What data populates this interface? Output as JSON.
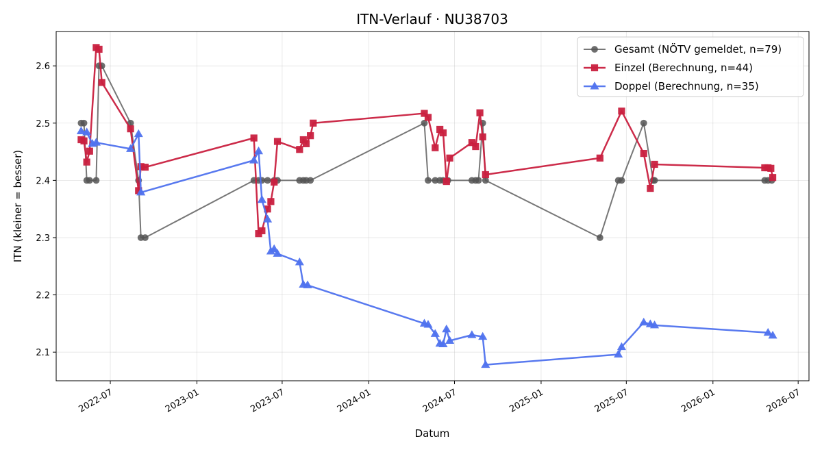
{
  "chart_data": {
    "type": "line",
    "title": "ITN-Verlauf · NU38703",
    "xlabel": "Datum",
    "ylabel": "ITN  (kleiner = besser)",
    "x_scale": "date",
    "xlim": [
      "2022-03-08",
      "2026-07-24"
    ],
    "ylim": [
      2.05,
      2.66
    ],
    "x_ticks": [
      "2022-07-01",
      "2023-01-01",
      "2023-07-01",
      "2024-01-01",
      "2024-07-01",
      "2025-01-01",
      "2025-07-01",
      "2026-01-01",
      "2026-07-01"
    ],
    "x_tick_labels": [
      "2022-07",
      "2023-01",
      "2023-07",
      "2024-01",
      "2024-07",
      "2025-01",
      "2025-07",
      "2026-01",
      "2026-07"
    ],
    "y_ticks": [
      2.1,
      2.2,
      2.3,
      2.4,
      2.5,
      2.6
    ],
    "y_tick_labels": [
      "2.1",
      "2.2",
      "2.3",
      "2.4",
      "2.5",
      "2.6"
    ],
    "grid": true,
    "legend_position": "top-right",
    "series": [
      {
        "name": "Gesamt (NÖTV gemeldet, n=79)",
        "color": "#555555",
        "marker": "circle",
        "points": [
          [
            "2022-04-30",
            2.5
          ],
          [
            "2022-05-06",
            2.5
          ],
          [
            "2022-05-12",
            2.4
          ],
          [
            "2022-05-18",
            2.4
          ],
          [
            "2022-06-01",
            2.4
          ],
          [
            "2022-06-07",
            2.6
          ],
          [
            "2022-06-13",
            2.6
          ],
          [
            "2022-08-13",
            2.5
          ],
          [
            "2022-08-30",
            2.4
          ],
          [
            "2022-09-04",
            2.3
          ],
          [
            "2022-09-13",
            2.3
          ],
          [
            "2023-05-02",
            2.4
          ],
          [
            "2023-05-12",
            2.4
          ],
          [
            "2023-05-19",
            2.4
          ],
          [
            "2023-05-31",
            2.4
          ],
          [
            "2023-06-14",
            2.4
          ],
          [
            "2023-06-21",
            2.4
          ],
          [
            "2023-08-07",
            2.4
          ],
          [
            "2023-08-15",
            2.4
          ],
          [
            "2023-08-21",
            2.4
          ],
          [
            "2023-08-30",
            2.4
          ],
          [
            "2024-04-28",
            2.5
          ],
          [
            "2024-05-06",
            2.4
          ],
          [
            "2024-05-21",
            2.4
          ],
          [
            "2024-05-31",
            2.4
          ],
          [
            "2024-06-07",
            2.4
          ],
          [
            "2024-06-17",
            2.4
          ],
          [
            "2024-08-07",
            2.4
          ],
          [
            "2024-08-15",
            2.4
          ],
          [
            "2024-08-21",
            2.4
          ],
          [
            "2024-08-30",
            2.5
          ],
          [
            "2024-09-05",
            2.4
          ],
          [
            "2025-05-06",
            2.3
          ],
          [
            "2025-06-14",
            2.4
          ],
          [
            "2025-06-21",
            2.4
          ],
          [
            "2025-08-07",
            2.5
          ],
          [
            "2025-08-27",
            2.4
          ],
          [
            "2025-08-30",
            2.4
          ],
          [
            "2026-04-21",
            2.4
          ],
          [
            "2026-04-28",
            2.4
          ],
          [
            "2026-05-06",
            2.4
          ]
        ]
      },
      {
        "name": "Einzel (Berechnung, n=44)",
        "color": "#c9203f",
        "marker": "square",
        "points": [
          [
            "2022-04-30",
            2.471
          ],
          [
            "2022-05-06",
            2.469
          ],
          [
            "2022-05-12",
            2.432
          ],
          [
            "2022-05-18",
            2.451
          ],
          [
            "2022-06-01",
            2.632
          ],
          [
            "2022-06-07",
            2.629
          ],
          [
            "2022-06-13",
            2.571
          ],
          [
            "2022-08-13",
            2.49
          ],
          [
            "2022-08-30",
            2.382
          ],
          [
            "2022-09-04",
            2.424
          ],
          [
            "2022-09-13",
            2.423
          ],
          [
            "2023-05-02",
            2.474
          ],
          [
            "2023-05-12",
            2.307
          ],
          [
            "2023-05-19",
            2.312
          ],
          [
            "2023-05-31",
            2.35
          ],
          [
            "2023-06-07",
            2.363
          ],
          [
            "2023-06-14",
            2.397
          ],
          [
            "2023-06-21",
            2.468
          ],
          [
            "2023-08-07",
            2.454
          ],
          [
            "2023-08-15",
            2.471
          ],
          [
            "2023-08-21",
            2.464
          ],
          [
            "2023-08-30",
            2.478
          ],
          [
            "2023-09-05",
            2.5
          ],
          [
            "2024-04-28",
            2.517
          ],
          [
            "2024-05-06",
            2.51
          ],
          [
            "2024-05-21",
            2.457
          ],
          [
            "2024-05-31",
            2.489
          ],
          [
            "2024-06-07",
            2.483
          ],
          [
            "2024-06-14",
            2.398
          ],
          [
            "2024-06-21",
            2.439
          ],
          [
            "2024-08-07",
            2.466
          ],
          [
            "2024-08-15",
            2.459
          ],
          [
            "2024-08-24",
            2.518
          ],
          [
            "2024-08-30",
            2.476
          ],
          [
            "2024-09-05",
            2.41
          ],
          [
            "2025-05-06",
            2.439
          ],
          [
            "2025-06-21",
            2.521
          ],
          [
            "2025-08-07",
            2.447
          ],
          [
            "2025-08-21",
            2.386
          ],
          [
            "2025-08-30",
            2.428
          ],
          [
            "2026-04-21",
            2.422
          ],
          [
            "2026-04-28",
            2.422
          ],
          [
            "2026-05-04",
            2.421
          ],
          [
            "2026-05-08",
            2.405
          ]
        ]
      },
      {
        "name": "Doppel (Berechnung, n=35)",
        "color": "#4f72ee",
        "marker": "triangle",
        "points": [
          [
            "2022-04-30",
            2.486
          ],
          [
            "2022-05-12",
            2.484
          ],
          [
            "2022-05-24",
            2.464
          ],
          [
            "2022-06-01",
            2.466
          ],
          [
            "2022-08-13",
            2.455
          ],
          [
            "2022-08-30",
            2.481
          ],
          [
            "2022-09-04",
            2.379
          ],
          [
            "2023-05-02",
            2.435
          ],
          [
            "2023-05-12",
            2.451
          ],
          [
            "2023-05-19",
            2.366
          ],
          [
            "2023-05-31",
            2.332
          ],
          [
            "2023-06-07",
            2.276
          ],
          [
            "2023-06-14",
            2.28
          ],
          [
            "2023-06-21",
            2.272
          ],
          [
            "2023-08-07",
            2.257
          ],
          [
            "2023-08-15",
            2.218
          ],
          [
            "2023-08-24",
            2.217
          ],
          [
            "2024-04-28",
            2.15
          ],
          [
            "2024-05-06",
            2.148
          ],
          [
            "2024-05-21",
            2.132
          ],
          [
            "2024-05-31",
            2.115
          ],
          [
            "2024-06-07",
            2.114
          ],
          [
            "2024-06-14",
            2.14
          ],
          [
            "2024-06-21",
            2.12
          ],
          [
            "2024-08-07",
            2.13
          ],
          [
            "2024-08-30",
            2.127
          ],
          [
            "2024-09-05",
            2.078
          ],
          [
            "2025-06-14",
            2.096
          ],
          [
            "2025-06-21",
            2.109
          ],
          [
            "2025-08-07",
            2.152
          ],
          [
            "2025-08-21",
            2.149
          ],
          [
            "2025-08-30",
            2.147
          ],
          [
            "2026-04-28",
            2.134
          ],
          [
            "2026-05-08",
            2.129
          ]
        ]
      }
    ]
  }
}
